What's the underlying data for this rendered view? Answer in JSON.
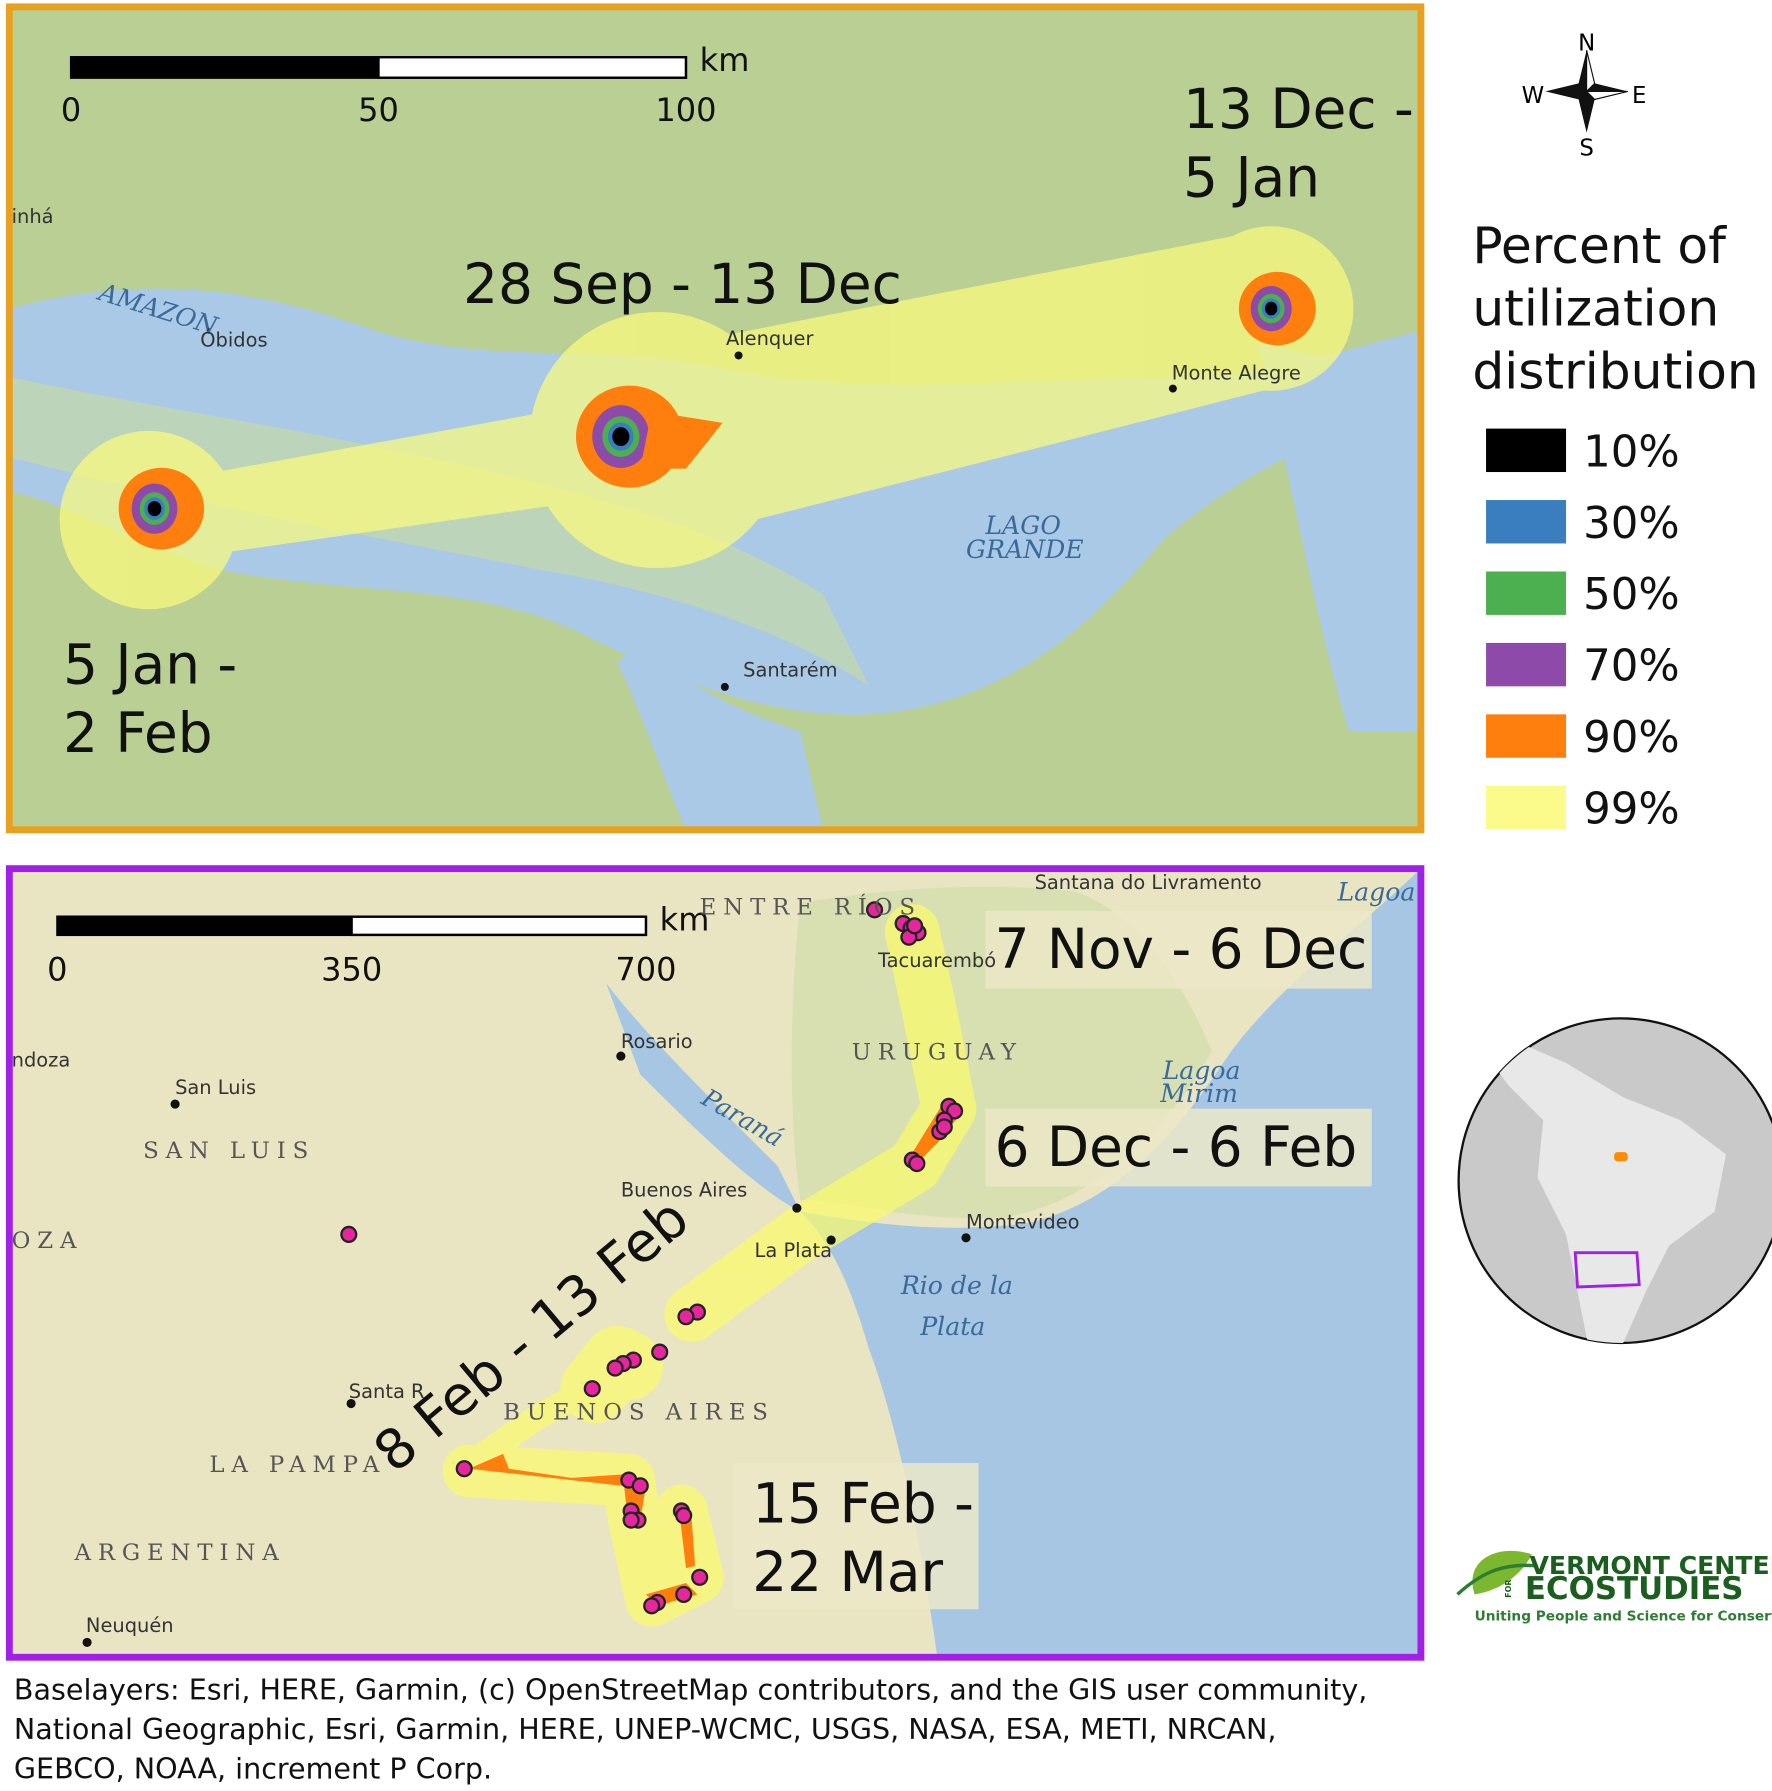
{
  "top_map": {
    "scale_bar": {
      "unit": "km",
      "ticks": [
        "0",
        "50",
        "100"
      ]
    },
    "periods": [
      [
        "13 Dec -",
        "5 Jan"
      ],
      [
        "28 Sep - 13 Dec"
      ],
      [
        "5 Jan -",
        "2 Feb"
      ]
    ],
    "places": [
      "AMAZON",
      "Óbidos",
      "Alenquer",
      "Monte Alegre",
      "LAGO",
      "GRANDE",
      "Santarém",
      "inhá"
    ]
  },
  "compass": {
    "n": "N",
    "s": "S",
    "e": "E",
    "w": "W"
  },
  "legend": {
    "title": [
      "Percent of",
      "utilization",
      "distribution"
    ],
    "items": [
      {
        "label": "10%",
        "color": "#000000"
      },
      {
        "label": "30%",
        "color": "#3a7ebf"
      },
      {
        "label": "50%",
        "color": "#4caf50"
      },
      {
        "label": "70%",
        "color": "#8e4aa8"
      },
      {
        "label": "90%",
        "color": "#ff7f0e"
      },
      {
        "label": "99%",
        "color": "#fbfb8c"
      }
    ]
  },
  "bottom_map": {
    "scale_bar": {
      "unit": "km",
      "ticks": [
        "0",
        "350",
        "700"
      ]
    },
    "periods": [
      [
        "7 Nov - 6 Dec"
      ],
      [
        "6 Dec - 6 Feb"
      ],
      [
        "8 Feb - 13 Feb"
      ],
      [
        "15 Feb -",
        "22 Mar"
      ]
    ],
    "places": [
      "ENTRE RÍOS",
      "Santana do Livramento",
      "Lagoa",
      "Tacuarembó",
      "URUGUAY",
      "Lagoa",
      "Mirim",
      "Rosario",
      "San Luis",
      "SAN LUIS",
      "ndoza",
      "Paraná",
      "Buenos Aires",
      "Montevideo",
      "La Plata",
      "Rio de la",
      "Plata",
      "OZA",
      "Santa R",
      "BUENOS AIRES",
      "LA PAMPA",
      "ARGENTINA",
      "Neuquén"
    ]
  },
  "logo": {
    "line1": "VERMONT CENTER",
    "for": "FOR",
    "line2": "ECOSTUDIES",
    "tagline": "Uniting People and Science for Conservation"
  },
  "caption": [
    "Baselayers: Esri, HERE, Garmin, (c) OpenStreetMap contributors, and the GIS user community,",
    "National Geographic, Esri, Garmin, HERE, UNEP-WCMC, USGS, NASA, ESA, METI, NRCAN,",
    "GEBCO, NOAA, increment P Corp."
  ]
}
